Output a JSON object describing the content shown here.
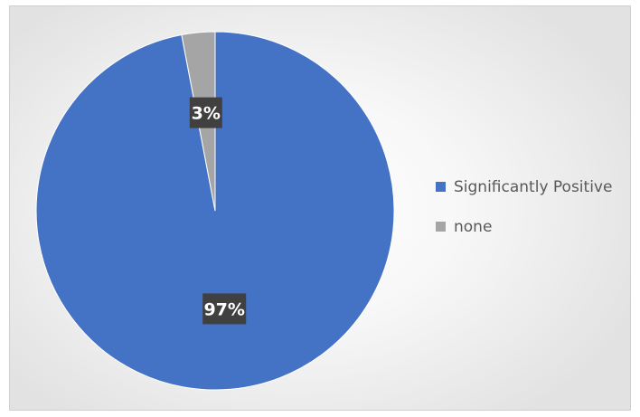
{
  "chart_data": {
    "type": "pie",
    "title": "",
    "slices": [
      {
        "name": "Significantly Positive",
        "value": 97,
        "label": "97%",
        "color": "#4472c4"
      },
      {
        "name": "none",
        "value": 3,
        "label": "3%",
        "color": "#a5a5a5"
      }
    ],
    "legend": {
      "position": "right",
      "items": [
        "Significantly Positive",
        "none"
      ]
    },
    "label_style": {
      "background": "#404040",
      "text_color": "#ffffff"
    }
  }
}
